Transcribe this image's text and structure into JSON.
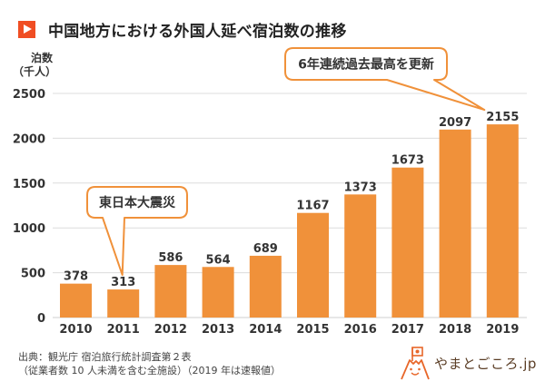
{
  "header": {
    "title": "中国地方における外国人延べ宿泊数の推移",
    "accent_color": "#F04E23"
  },
  "axis_unit": {
    "line1": "泊数",
    "line2": "（千人）"
  },
  "chart_data": {
    "type": "bar",
    "title": "中国地方における外国人延べ宿泊数の推移",
    "xlabel": "",
    "ylabel": "泊数（千人）",
    "categories": [
      "2010",
      "2011",
      "2012",
      "2013",
      "2014",
      "2015",
      "2016",
      "2017",
      "2018",
      "2019"
    ],
    "values": [
      378,
      313,
      586,
      564,
      689,
      1167,
      1373,
      1673,
      2097,
      2155
    ],
    "ylim": [
      0,
      2500
    ],
    "yticks": [
      0,
      500,
      1000,
      1500,
      2000,
      2500
    ],
    "grid": true,
    "bar_color": "#F0913A",
    "data_labels": true,
    "annotations": [
      {
        "text": "東日本大震災",
        "target_category": "2011"
      },
      {
        "text": "6年連続過去最高を更新",
        "target_category": "2019"
      }
    ]
  },
  "source": {
    "line1": "出典：観光庁 宿泊旅行統計調査第２表",
    "line2": "（従業者数 10 人未満を含む全施設）（2019 年は速報値）"
  },
  "logo": {
    "text": "やまとごころ.jp",
    "color": "#E8672A"
  }
}
